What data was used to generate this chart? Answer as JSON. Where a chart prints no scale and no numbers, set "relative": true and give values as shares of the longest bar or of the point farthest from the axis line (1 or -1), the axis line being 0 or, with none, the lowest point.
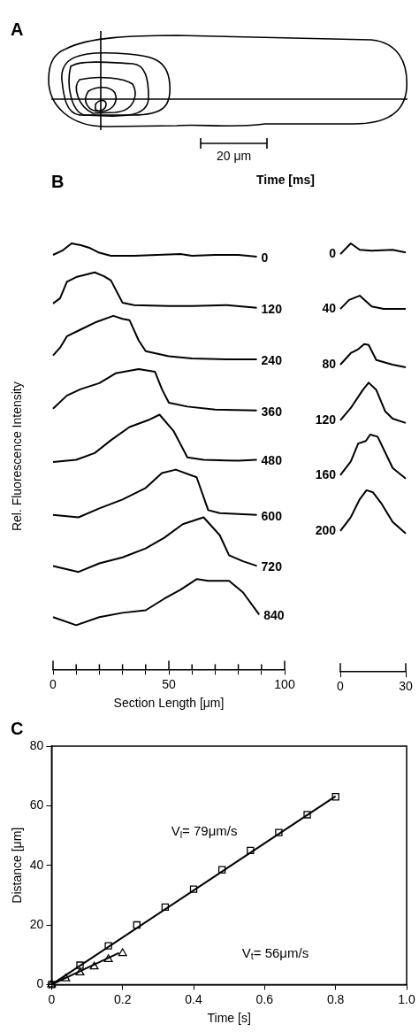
{
  "chart_data": [
    {
      "type": "other",
      "title": "A",
      "annotations": [
        "20 μm"
      ]
    },
    {
      "type": "line",
      "title": "B",
      "legend_title": "Time [ms]",
      "ylabel": "Rel. Fluorescence Intensity",
      "xlabel": "Section Length [μm]",
      "relative": true,
      "xlim": [
        0,
        100
      ],
      "xticks": [
        0,
        {
          "value": 10,
          "label": null
        },
        {
          "value": 20,
          "label": null
        },
        {
          "value": 30,
          "label": null
        },
        {
          "value": 40,
          "label": null
        },
        50,
        {
          "value": 60,
          "label": null
        },
        {
          "value": 70,
          "label": null
        },
        {
          "value": 80,
          "label": null
        },
        {
          "value": 90,
          "label": null
        },
        100
      ],
      "grid": false,
      "marker": "none",
      "series": [
        {
          "name": "0",
          "color": "#000000",
          "x": [
            0,
            4,
            8,
            12,
            16,
            20,
            25,
            35,
            45,
            55,
            60,
            70,
            80,
            88
          ],
          "values": [
            0.973,
            0.983,
            1.0,
            0.996,
            0.989,
            0.978,
            0.971,
            0.971,
            0.973,
            0.975,
            0.971,
            0.973,
            0.973,
            0.969
          ]
        },
        {
          "name": "120",
          "color": "#000000",
          "x": [
            0,
            3,
            6,
            10,
            18,
            22,
            25,
            30,
            35,
            50,
            60,
            75,
            88
          ],
          "values": [
            0.859,
            0.871,
            0.91,
            0.921,
            0.932,
            0.923,
            0.913,
            0.861,
            0.855,
            0.853,
            0.853,
            0.855,
            0.849
          ]
        },
        {
          "name": "240",
          "color": "#000000",
          "x": [
            0,
            3,
            6,
            12,
            18,
            26,
            30,
            33,
            37,
            40,
            50,
            60,
            75,
            88
          ],
          "values": [
            0.737,
            0.755,
            0.782,
            0.798,
            0.814,
            0.83,
            0.823,
            0.82,
            0.772,
            0.747,
            0.735,
            0.73,
            0.728,
            0.728
          ]
        },
        {
          "name": "360",
          "color": "#000000",
          "x": [
            0,
            6,
            12,
            20,
            27,
            37,
            44,
            47,
            50,
            58,
            70,
            88
          ],
          "values": [
            0.612,
            0.643,
            0.658,
            0.672,
            0.695,
            0.705,
            0.699,
            0.658,
            0.626,
            0.617,
            0.61,
            0.608
          ]
        },
        {
          "name": "480",
          "color": "#000000",
          "x": [
            0,
            10,
            18,
            25,
            33,
            41,
            46,
            52,
            58,
            65,
            80,
            88
          ],
          "values": [
            0.487,
            0.492,
            0.508,
            0.538,
            0.569,
            0.585,
            0.598,
            0.56,
            0.498,
            0.492,
            0.49,
            0.492
          ]
        },
        {
          "name": "600",
          "color": "#000000",
          "x": [
            0,
            11,
            20,
            30,
            40,
            47,
            53,
            62,
            67,
            72,
            88
          ],
          "values": [
            0.363,
            0.357,
            0.378,
            0.399,
            0.426,
            0.461,
            0.469,
            0.451,
            0.374,
            0.367,
            0.363
          ]
        },
        {
          "name": "720",
          "color": "#000000",
          "x": [
            0,
            11,
            20,
            30,
            40,
            48,
            56,
            65,
            72,
            76,
            82,
            88
          ],
          "values": [
            0.243,
            0.229,
            0.249,
            0.263,
            0.284,
            0.309,
            0.341,
            0.357,
            0.315,
            0.268,
            0.254,
            0.243
          ]
        },
        {
          "name": "840",
          "color": "#000000",
          "x": [
            0,
            10,
            20,
            30,
            40,
            48,
            55,
            62,
            67,
            76,
            82,
            89
          ],
          "values": [
            0.123,
            0.104,
            0.123,
            0.133,
            0.139,
            0.166,
            0.187,
            0.212,
            0.208,
            0.208,
            0.181,
            0.129
          ]
        }
      ]
    },
    {
      "type": "line",
      "relative": true,
      "xlim": [
        0,
        30
      ],
      "xticks": [
        0,
        30
      ],
      "grid": false,
      "marker": "none",
      "series": [
        {
          "name": "0",
          "color": "#000000",
          "x": [
            0,
            4.8,
            8.9,
            14.4,
            24,
            30
          ],
          "values": [
            0.975,
            1.0,
            0.985,
            0.983,
            0.985,
            0.979
          ]
        },
        {
          "name": "40",
          "color": "#000000",
          "x": [
            0,
            4,
            8.9,
            14.4,
            19.9,
            30
          ],
          "values": [
            0.847,
            0.868,
            0.878,
            0.853,
            0.847,
            0.847
          ]
        },
        {
          "name": "80",
          "color": "#000000",
          "x": [
            0,
            4.8,
            8.2,
            11,
            13,
            16.5,
            24,
            30
          ],
          "values": [
            0.717,
            0.744,
            0.753,
            0.765,
            0.763,
            0.728,
            0.717,
            0.711
          ]
        },
        {
          "name": "120",
          "color": "#000000",
          "x": [
            0,
            4.8,
            10.3,
            13,
            16.5,
            20.6,
            24,
            30
          ],
          "values": [
            0.587,
            0.616,
            0.658,
            0.675,
            0.658,
            0.608,
            0.591,
            0.581
          ]
        },
        {
          "name": "160",
          "color": "#000000",
          "x": [
            0,
            4.8,
            8.2,
            11.7,
            13.7,
            17.1,
            20.6,
            24,
            30
          ],
          "values": [
            0.459,
            0.491,
            0.533,
            0.539,
            0.554,
            0.549,
            0.512,
            0.476,
            0.451
          ]
        },
        {
          "name": "200",
          "color": "#000000",
          "x": [
            0,
            4.8,
            8.9,
            12,
            15,
            19,
            24,
            30
          ],
          "values": [
            0.329,
            0.361,
            0.403,
            0.424,
            0.419,
            0.392,
            0.35,
            0.323
          ]
        }
      ]
    },
    {
      "type": "scatter",
      "title": "C",
      "xlabel": "Time [s]",
      "ylabel": "Distance [μm]",
      "xlim": [
        0,
        1
      ],
      "ylim": [
        0,
        80
      ],
      "xticks": [
        0,
        0.2,
        0.4,
        0.6,
        0.8,
        {
          "value": 1,
          "label": "1.0"
        }
      ],
      "yticks": [
        0,
        20,
        40,
        60,
        80
      ],
      "grid": false,
      "annotations": [
        "V$_{l}$= 79μm/s",
        "V$_{t}$= 56μm/s"
      ],
      "series": [
        {
          "type": "line",
          "marker": "none",
          "color": "#000000",
          "x": [
            0,
            0.8
          ],
          "values": [
            0,
            63.2
          ]
        },
        {
          "type": "line",
          "marker": "none",
          "color": "#000000",
          "x": [
            0,
            0.19
          ],
          "values": [
            0,
            10.6
          ]
        },
        {
          "type": "scatter",
          "marker": "square",
          "color": "#000000",
          "x": [
            0,
            0.08,
            0.16,
            0.24,
            0.32,
            0.4,
            0.48,
            0.56,
            0.64,
            0.72,
            0.8
          ],
          "values": [
            0,
            6.5,
            13,
            20,
            26,
            32,
            38.5,
            45,
            51,
            57,
            63
          ]
        },
        {
          "type": "scatter",
          "marker": "triangle",
          "color": "#000000",
          "x": [
            0,
            0.04,
            0.08,
            0.12,
            0.16,
            0.2
          ],
          "values": [
            0,
            2,
            4,
            6,
            8.5,
            10.5
          ]
        }
      ]
    }
  ]
}
